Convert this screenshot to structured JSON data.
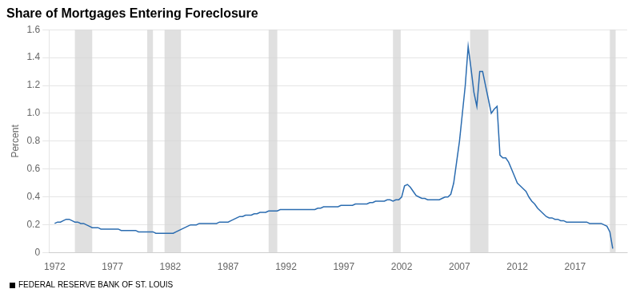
{
  "chart_data": {
    "type": "line",
    "title": "Share of Mortgages Entering Foreclosure",
    "ylabel": "Percent",
    "source": "FEDERAL RESERVE BANK OF ST. LOUIS",
    "color": "#2b6cb0",
    "grid": "y",
    "recessions": {
      "color": "#d3d3d3",
      "ranges": [
        [
          1973.75,
          1975.25
        ],
        [
          1980.0,
          1980.5
        ],
        [
          1981.5,
          1982.92
        ],
        [
          1990.5,
          1991.25
        ],
        [
          2001.25,
          2001.92
        ],
        [
          2007.92,
          2009.5
        ],
        [
          2020.0,
          2020.5
        ]
      ]
    },
    "xlim": [
      1971.5,
      2021.5
    ],
    "ylim": [
      0,
      1.6
    ],
    "xticks": [
      1972,
      1977,
      1982,
      1987,
      1992,
      1997,
      2002,
      2007,
      2012,
      2017
    ],
    "yticks": [
      0,
      0.2,
      0.4,
      0.6,
      0.8,
      {
        "value": 1.0,
        "label": "1.0"
      },
      1.2,
      1.4,
      1.6
    ],
    "x": [
      1972.0,
      1972.25,
      1972.5,
      1972.75,
      1973.0,
      1973.25,
      1973.5,
      1973.75,
      1974.0,
      1974.25,
      1974.5,
      1974.75,
      1975.0,
      1975.25,
      1975.5,
      1975.75,
      1976.0,
      1976.25,
      1976.5,
      1976.75,
      1977.0,
      1977.25,
      1977.5,
      1977.75,
      1978.0,
      1978.25,
      1978.5,
      1978.75,
      1979.0,
      1979.25,
      1979.5,
      1979.75,
      1980.0,
      1980.25,
      1980.5,
      1980.75,
      1981.0,
      1981.25,
      1981.5,
      1981.75,
      1982.0,
      1982.25,
      1982.5,
      1982.75,
      1983.0,
      1983.25,
      1983.5,
      1983.75,
      1984.0,
      1984.25,
      1984.5,
      1984.75,
      1985.0,
      1985.25,
      1985.5,
      1985.75,
      1986.0,
      1986.25,
      1986.5,
      1986.75,
      1987.0,
      1987.25,
      1987.5,
      1987.75,
      1988.0,
      1988.25,
      1988.5,
      1988.75,
      1989.0,
      1989.25,
      1989.5,
      1989.75,
      1990.0,
      1990.25,
      1990.5,
      1990.75,
      1991.0,
      1991.25,
      1991.5,
      1991.75,
      1992.0,
      1992.25,
      1992.5,
      1992.75,
      1993.0,
      1993.25,
      1993.5,
      1993.75,
      1994.0,
      1994.25,
      1994.5,
      1994.75,
      1995.0,
      1995.25,
      1995.5,
      1995.75,
      1996.0,
      1996.25,
      1996.5,
      1996.75,
      1997.0,
      1997.25,
      1997.5,
      1997.75,
      1998.0,
      1998.25,
      1998.5,
      1998.75,
      1999.0,
      1999.25,
      1999.5,
      1999.75,
      2000.0,
      2000.25,
      2000.5,
      2000.75,
      2001.0,
      2001.25,
      2001.5,
      2001.75,
      2002.0,
      2002.25,
      2002.5,
      2002.75,
      2003.0,
      2003.25,
      2003.5,
      2003.75,
      2004.0,
      2004.25,
      2004.5,
      2004.75,
      2005.0,
      2005.25,
      2005.5,
      2005.75,
      2006.0,
      2006.25,
      2006.5,
      2006.75,
      2007.0,
      2007.25,
      2007.5,
      2007.75,
      2008.0,
      2008.25,
      2008.5,
      2008.75,
      2009.0,
      2009.25,
      2009.5,
      2009.75,
      2010.0,
      2010.25,
      2010.5,
      2010.75,
      2011.0,
      2011.25,
      2011.5,
      2011.75,
      2012.0,
      2012.25,
      2012.5,
      2012.75,
      2013.0,
      2013.25,
      2013.5,
      2013.75,
      2014.0,
      2014.25,
      2014.5,
      2014.75,
      2015.0,
      2015.25,
      2015.5,
      2015.75,
      2016.0,
      2016.25,
      2016.5,
      2016.75,
      2017.0,
      2017.25,
      2017.5,
      2017.75,
      2018.0,
      2018.25,
      2018.5,
      2018.75,
      2019.0,
      2019.25,
      2019.5,
      2019.75,
      2020.0,
      2020.25
    ],
    "values": [
      0.21,
      0.22,
      0.22,
      0.23,
      0.24,
      0.24,
      0.23,
      0.22,
      0.22,
      0.21,
      0.21,
      0.2,
      0.19,
      0.18,
      0.18,
      0.18,
      0.17,
      0.17,
      0.17,
      0.17,
      0.17,
      0.17,
      0.17,
      0.16,
      0.16,
      0.16,
      0.16,
      0.16,
      0.16,
      0.15,
      0.15,
      0.15,
      0.15,
      0.15,
      0.15,
      0.14,
      0.14,
      0.14,
      0.14,
      0.14,
      0.14,
      0.14,
      0.15,
      0.16,
      0.17,
      0.18,
      0.19,
      0.2,
      0.2,
      0.2,
      0.21,
      0.21,
      0.21,
      0.21,
      0.21,
      0.21,
      0.21,
      0.22,
      0.22,
      0.22,
      0.22,
      0.23,
      0.24,
      0.25,
      0.26,
      0.26,
      0.27,
      0.27,
      0.27,
      0.28,
      0.28,
      0.29,
      0.29,
      0.29,
      0.3,
      0.3,
      0.3,
      0.3,
      0.31,
      0.31,
      0.31,
      0.31,
      0.31,
      0.31,
      0.31,
      0.31,
      0.31,
      0.31,
      0.31,
      0.31,
      0.31,
      0.32,
      0.32,
      0.33,
      0.33,
      0.33,
      0.33,
      0.33,
      0.33,
      0.34,
      0.34,
      0.34,
      0.34,
      0.34,
      0.35,
      0.35,
      0.35,
      0.35,
      0.35,
      0.36,
      0.36,
      0.37,
      0.37,
      0.37,
      0.37,
      0.38,
      0.38,
      0.37,
      0.38,
      0.38,
      0.4,
      0.48,
      0.49,
      0.47,
      0.44,
      0.41,
      0.4,
      0.39,
      0.39,
      0.38,
      0.38,
      0.38,
      0.38,
      0.38,
      0.39,
      0.4,
      0.4,
      0.42,
      0.5,
      0.65,
      0.8,
      1.0,
      1.2,
      1.48,
      1.32,
      1.15,
      1.05,
      1.3,
      1.3,
      1.2,
      1.1,
      1.0,
      1.03,
      1.05,
      0.7,
      0.68,
      0.68,
      0.65,
      0.6,
      0.55,
      0.5,
      0.48,
      0.46,
      0.44,
      0.4,
      0.37,
      0.35,
      0.32,
      0.3,
      0.28,
      0.26,
      0.25,
      0.25,
      0.24,
      0.24,
      0.23,
      0.23,
      0.22,
      0.22,
      0.22,
      0.22,
      0.22,
      0.22,
      0.22,
      0.22,
      0.21,
      0.21,
      0.21,
      0.21,
      0.21,
      0.2,
      0.19,
      0.15,
      0.03
    ]
  }
}
